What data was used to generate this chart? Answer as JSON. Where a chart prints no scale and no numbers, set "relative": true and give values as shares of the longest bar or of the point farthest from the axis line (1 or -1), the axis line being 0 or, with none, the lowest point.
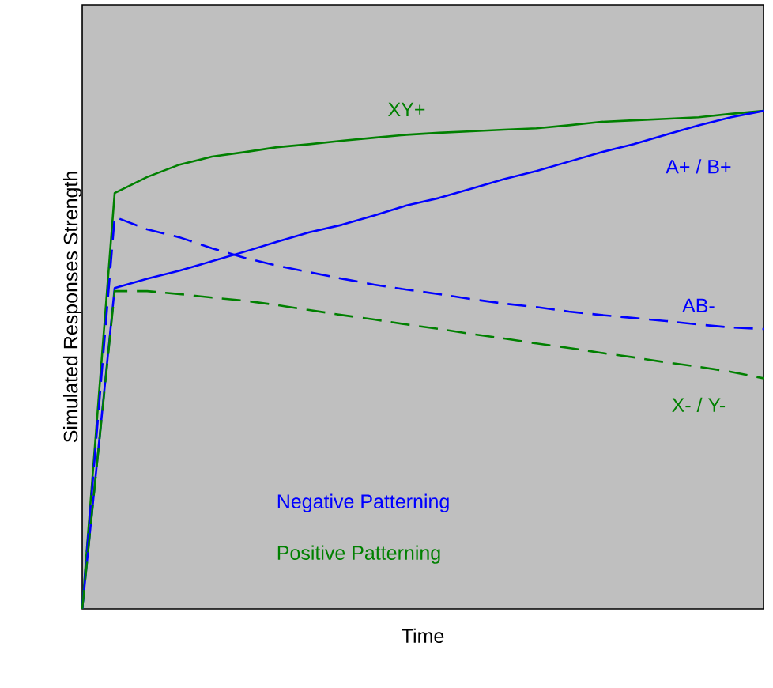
{
  "chart_data": {
    "type": "line",
    "relative": true,
    "xlabel": "Time",
    "ylabel": "Simulated Responses Strength",
    "categories": [
      null,
      null,
      null,
      null,
      null,
      null,
      null,
      null,
      null,
      null,
      null,
      null,
      null,
      null,
      null,
      null,
      null,
      null,
      null,
      null,
      null,
      null
    ],
    "series": [
      {
        "name": "XY+",
        "color": "#008000",
        "line_style": "solid",
        "values": [
          0,
          0.835,
          0.867,
          0.892,
          0.908,
          0.917,
          0.927,
          0.933,
          0.94,
          0.946,
          0.952,
          0.956,
          0.959,
          0.962,
          0.965,
          0.971,
          0.978,
          0.981,
          0.984,
          0.987,
          0.994,
          1
        ]
      },
      {
        "name": "A+ / B+",
        "color": "#0000ff",
        "line_style": "solid",
        "values": [
          0,
          0.644,
          0.663,
          0.679,
          0.698,
          0.717,
          0.737,
          0.756,
          0.771,
          0.79,
          0.81,
          0.825,
          0.844,
          0.863,
          0.879,
          0.898,
          0.917,
          0.933,
          0.952,
          0.971,
          0.987,
          1
        ]
      },
      {
        "name": "AB-",
        "color": "#0000ff",
        "line_style": "dashed",
        "values": [
          0,
          0.787,
          0.762,
          0.746,
          0.724,
          0.705,
          0.689,
          0.676,
          0.663,
          0.651,
          0.641,
          0.632,
          0.622,
          0.613,
          0.606,
          0.597,
          0.59,
          0.584,
          0.578,
          0.571,
          0.565,
          0.562
        ]
      },
      {
        "name": "X- / Y-",
        "color": "#008000",
        "line_style": "dashed",
        "values": [
          0,
          0.638,
          0.638,
          0.632,
          0.625,
          0.619,
          0.61,
          0.6,
          0.59,
          0.581,
          0.571,
          0.562,
          0.552,
          0.543,
          0.533,
          0.524,
          0.514,
          0.505,
          0.495,
          0.486,
          0.476,
          0.463
        ]
      }
    ],
    "annotations": [
      "Negative Patterning",
      "Positive Patterning"
    ]
  }
}
